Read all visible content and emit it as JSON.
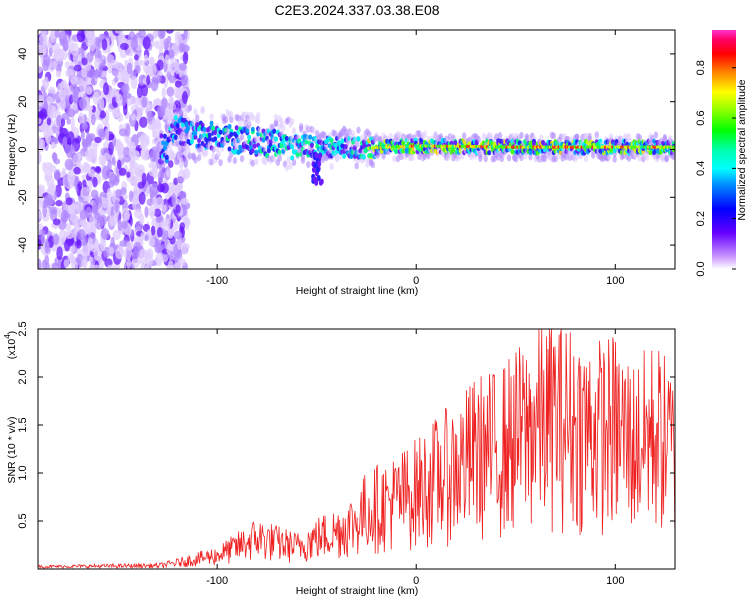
{
  "title": "C2E3.2024.337.03.38.E08",
  "chart_data": [
    {
      "type": "heatmap",
      "xlabel": "Height of straight line (km)",
      "ylabel": "Frequency (Hz)",
      "xlim": [
        -190,
        130
      ],
      "ylim": [
        -50,
        50
      ],
      "x_ticks": [
        -100,
        0,
        100
      ],
      "y_ticks": [
        -40,
        -20,
        0,
        20,
        40
      ],
      "colorbar": {
        "label": "Normalized spectral amplitude",
        "range": [
          0,
          0.95
        ],
        "ticks": [
          0.0,
          0.2,
          0.4,
          0.6,
          0.8
        ],
        "colormap": [
          "#ff00ff",
          "#ff0066",
          "#ff0000",
          "#ff8800",
          "#ffff00",
          "#88ff00",
          "#00ff00",
          "#00ffaa",
          "#00ffff",
          "#0088ff",
          "#0000ff",
          "#6600ff",
          "#cc99ff",
          "#ffffff"
        ]
      },
      "description_bands": {
        "noise_region_x": [
          -190,
          -125
        ],
        "signal_center_hz": [
          [
            -125,
            9
          ],
          [
            -100,
            5
          ],
          [
            -75,
            3
          ],
          [
            -50,
            1
          ],
          [
            -25,
            0.5
          ],
          [
            0,
            1.5
          ],
          [
            50,
            1
          ],
          [
            130,
            1
          ]
        ]
      }
    },
    {
      "type": "line",
      "xlabel": "Height of straight line (km)",
      "ylabel": "SNR (10 * v/v)",
      "y_multiplier": "(x10",
      "y_multiplier_exp": "4",
      "xlim": [
        -190,
        130
      ],
      "ylim": [
        0,
        2.5
      ],
      "x_ticks": [
        -100,
        0,
        100
      ],
      "y_ticks": [
        0.5,
        1.0,
        1.5,
        2.0,
        2.5
      ],
      "series": [
        {
          "color": "#ee2020",
          "envelope": {
            "x": [
              -190,
              -130,
              -120,
              -100,
              -90,
              -80,
              -70,
              -60,
              -50,
              -40,
              -30,
              -25,
              -20,
              -10,
              0,
              10,
              20,
              30,
              40,
              50,
              60,
              70,
              80,
              90,
              100,
              110,
              120,
              130
            ],
            "y": [
              0.03,
              0.05,
              0.1,
              0.22,
              0.35,
              0.5,
              0.42,
              0.35,
              0.5,
              0.6,
              0.75,
              0.95,
              1.0,
              1.1,
              1.25,
              1.45,
              1.6,
              1.85,
              1.9,
              2.1,
              2.3,
              2.45,
              2.3,
              2.2,
              2.25,
              2.0,
              2.2,
              1.9
            ]
          }
        }
      ]
    }
  ]
}
